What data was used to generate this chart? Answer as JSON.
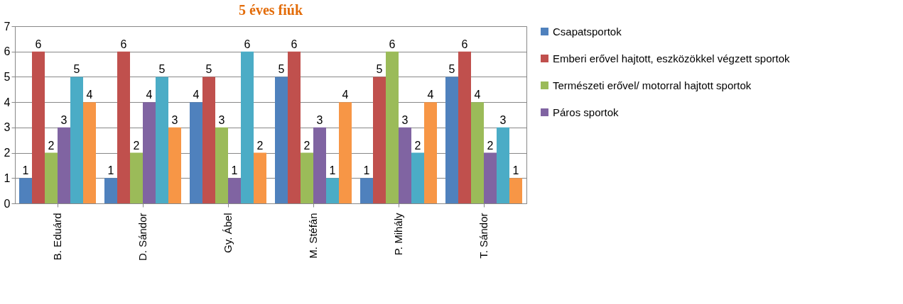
{
  "chart_data": {
    "type": "bar",
    "title": "5 éves fiúk",
    "categories": [
      "B. Eduárd",
      "D. Sándor",
      "Gy. Ábel",
      "M. Stéfán",
      "P. Mihály",
      "T. Sándor"
    ],
    "series": [
      {
        "name": "Csapatsportok",
        "color": "#4f81bd",
        "values": [
          1,
          1,
          4,
          5,
          1,
          5
        ]
      },
      {
        "name": "Emberi erővel hajtott, eszközökkel végzett sportok",
        "color": "#c0504d",
        "values": [
          6,
          6,
          5,
          6,
          5,
          6
        ]
      },
      {
        "name": "Természeti erővel/ motorral hajtott sportok",
        "color": "#9bbb59",
        "values": [
          2,
          2,
          3,
          2,
          6,
          4
        ]
      },
      {
        "name": "Páros sportok",
        "color": "#8064a2",
        "values": [
          3,
          4,
          1,
          3,
          3,
          2
        ]
      },
      {
        "color": "#4bacc6",
        "values": [
          5,
          5,
          6,
          1,
          2,
          3
        ]
      },
      {
        "color": "#f79646",
        "values": [
          4,
          3,
          2,
          4,
          4,
          1
        ]
      }
    ],
    "ylim": [
      0,
      7
    ],
    "yticks": [
      0,
      1,
      2,
      3,
      4,
      5,
      6,
      7
    ],
    "grid": "y",
    "legend": "right",
    "data_labels": true
  }
}
